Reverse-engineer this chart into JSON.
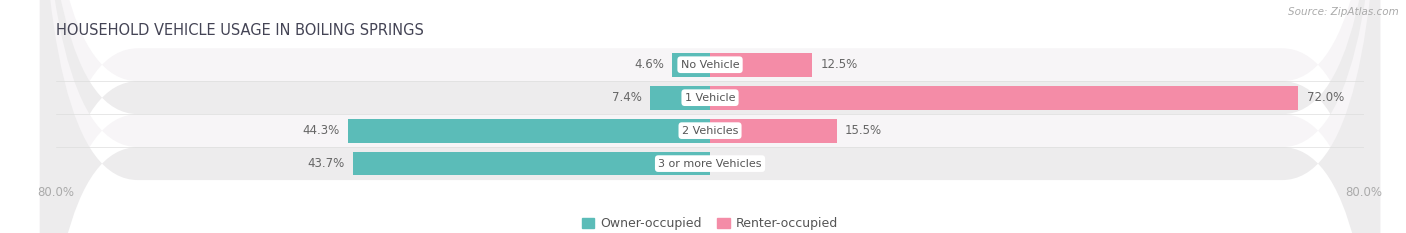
{
  "title": "HOUSEHOLD VEHICLE USAGE IN BOILING SPRINGS",
  "source": "Source: ZipAtlas.com",
  "categories": [
    "No Vehicle",
    "1 Vehicle",
    "2 Vehicles",
    "3 or more Vehicles"
  ],
  "owner_values": [
    4.6,
    7.4,
    44.3,
    43.7
  ],
  "renter_values": [
    12.5,
    72.0,
    15.5,
    0.0
  ],
  "owner_color": "#5bbcb8",
  "renter_color": "#f48ca7",
  "bg_color": "#f2f0f1",
  "row_light": "#faf9fa",
  "row_dark": "#eeecee",
  "x_left_label": "80.0%",
  "x_right_label": "80.0%",
  "legend_owner": "Owner-occupied",
  "legend_renter": "Renter-occupied",
  "bar_height": 0.72,
  "xlim_abs": 80
}
